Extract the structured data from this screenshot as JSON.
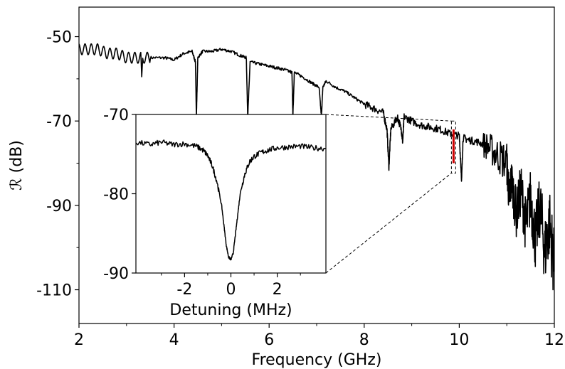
{
  "chart_data": [
    {
      "type": "line",
      "xlabel": "Frequency (GHz)",
      "ylabel": "ℛ (dB)",
      "xlim": [
        2,
        12
      ],
      "ylim": [
        -118,
        -43
      ],
      "xticks": [
        2,
        4,
        6,
        8,
        10,
        12
      ],
      "xtick_labels": [
        "2",
        "4",
        "6",
        "8",
        "10",
        "12"
      ],
      "yticks": [
        -50,
        -70,
        -90,
        -110
      ],
      "ytick_labels": [
        "-50",
        "-70",
        "-90",
        "-110"
      ],
      "minor_yticks": [
        -60,
        -80,
        -100
      ],
      "grid": false,
      "series": [
        {
          "color": "#000000",
          "x": [
            2.0,
            2.2,
            2.4,
            2.6,
            2.8,
            3.0,
            3.2,
            3.3,
            3.32,
            3.34,
            3.5,
            3.8,
            4.0,
            4.2,
            4.38,
            4.45,
            4.47,
            4.5,
            4.6,
            4.8,
            5.0,
            5.2,
            5.4,
            5.52,
            5.55,
            5.6,
            5.8,
            6.0,
            6.2,
            6.4,
            6.48,
            6.5,
            6.53,
            6.7,
            6.9,
            7.05,
            7.1,
            7.13,
            7.2,
            7.4,
            7.6,
            7.8,
            8.0,
            8.2,
            8.4,
            8.48,
            8.52,
            8.56,
            8.7,
            8.78,
            8.81,
            8.84,
            9.0,
            9.2,
            9.4,
            9.6,
            9.8,
            10.0,
            10.05,
            10.08,
            10.2,
            10.4,
            10.6,
            10.8,
            11.0,
            11.05,
            11.1,
            11.2,
            11.3,
            11.4,
            11.5,
            11.6,
            11.7,
            11.8,
            11.9,
            12.0
          ],
          "y": [
            -53,
            -53,
            -53,
            -54,
            -54,
            -55,
            -55,
            -55,
            -60.5,
            -55,
            -55,
            -55,
            -55.5,
            -54,
            -53.5,
            -56,
            -69,
            -55,
            -53.5,
            -53.5,
            -53,
            -53.5,
            -54.5,
            -55,
            -69,
            -56,
            -56.5,
            -57,
            -57.5,
            -58,
            -58.5,
            -69,
            -58.5,
            -59.5,
            -61,
            -62,
            -69,
            -62,
            -60.5,
            -62,
            -63,
            -64.5,
            -66,
            -67,
            -68,
            -72,
            -81,
            -72,
            -69,
            -72,
            -75,
            -69,
            -70,
            -71,
            -71.5,
            -72,
            -73,
            -73.5,
            -84,
            -74,
            -74.5,
            -75,
            -76,
            -78,
            -80,
            -88,
            -84,
            -92,
            -86,
            -95,
            -88,
            -98,
            -90,
            -101,
            -94,
            -105
          ]
        },
        {
          "color": "#cc0000",
          "x": [
            9.88,
            9.88
          ],
          "y": [
            -72,
            -80
          ]
        }
      ]
    },
    {
      "type": "line",
      "xlabel": "Detuning (MHz)",
      "ylabel": "",
      "xlim": [
        -4.1,
        4.1
      ],
      "ylim": [
        -90,
        -70
      ],
      "xticks": [
        -2,
        0,
        2
      ],
      "xtick_labels": [
        "-2",
        "0",
        "2"
      ],
      "minor_xticks": [
        -3,
        -1,
        1,
        3
      ],
      "yticks": [
        -70,
        -80,
        -90
      ],
      "ytick_labels": [
        "-70",
        "-80",
        "-90"
      ],
      "grid": false,
      "series": [
        {
          "color": "#000000",
          "x": [
            -4.1,
            -3.5,
            -3.0,
            -2.5,
            -2.0,
            -1.5,
            -1.2,
            -1.0,
            -0.8,
            -0.6,
            -0.4,
            -0.3,
            -0.2,
            -0.1,
            0.0,
            0.1,
            0.2,
            0.3,
            0.4,
            0.6,
            0.8,
            1.0,
            1.3,
            1.6,
            2.0,
            2.5,
            3.0,
            3.5,
            4.1
          ],
          "y": [
            -73.5,
            -73.8,
            -73.5,
            -73.8,
            -73.7,
            -74.0,
            -74.5,
            -75.2,
            -76.5,
            -78.5,
            -81.5,
            -84.0,
            -86.5,
            -88.0,
            -88.3,
            -87.5,
            -85.0,
            -82.5,
            -80.0,
            -77.5,
            -76.0,
            -75.3,
            -74.8,
            -74.5,
            -74.2,
            -74.1,
            -74.0,
            -74.2,
            -74.3
          ]
        }
      ]
    }
  ]
}
